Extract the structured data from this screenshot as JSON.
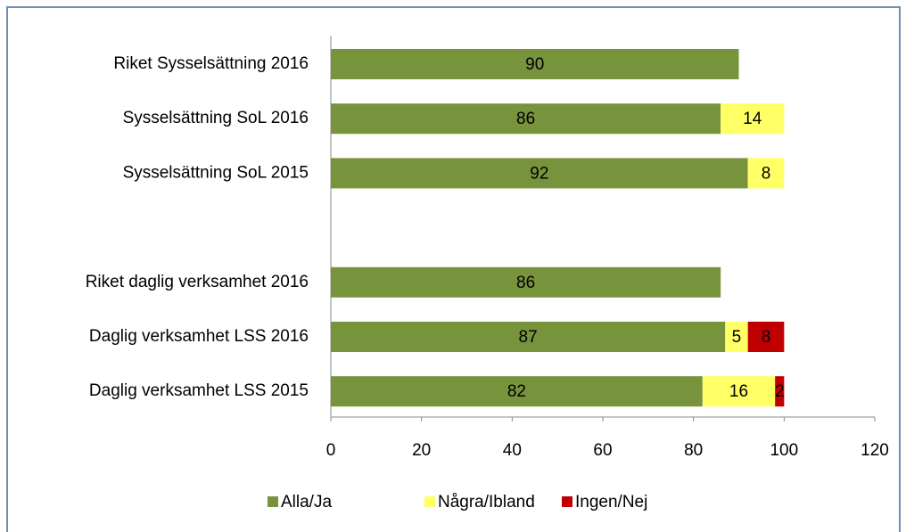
{
  "chart_data": {
    "type": "bar",
    "orientation": "horizontal",
    "stacked": true,
    "categories": [
      "Riket Sysselsättning 2016",
      "Sysselsättning SoL 2016",
      "Sysselsättning SoL 2015",
      null,
      "Riket daglig verksamhet 2016",
      "Daglig verksamhet LSS 2016",
      "Daglig verksamhet LSS 2015"
    ],
    "series": [
      {
        "name": "Alla/Ja",
        "color": "#77933c",
        "values": [
          90,
          86,
          92,
          null,
          86,
          87,
          82
        ]
      },
      {
        "name": "Några/Ibland",
        "color": "#ffff66",
        "values": [
          null,
          14,
          8,
          null,
          null,
          5,
          16
        ]
      },
      {
        "name": "Ingen/Nej",
        "color": "#c00000",
        "values": [
          null,
          null,
          null,
          null,
          null,
          8,
          2
        ]
      }
    ],
    "xlim": [
      0,
      120
    ],
    "xticks": [
      0,
      20,
      40,
      60,
      80,
      100,
      120
    ],
    "grid": false,
    "legend": "bottom"
  }
}
